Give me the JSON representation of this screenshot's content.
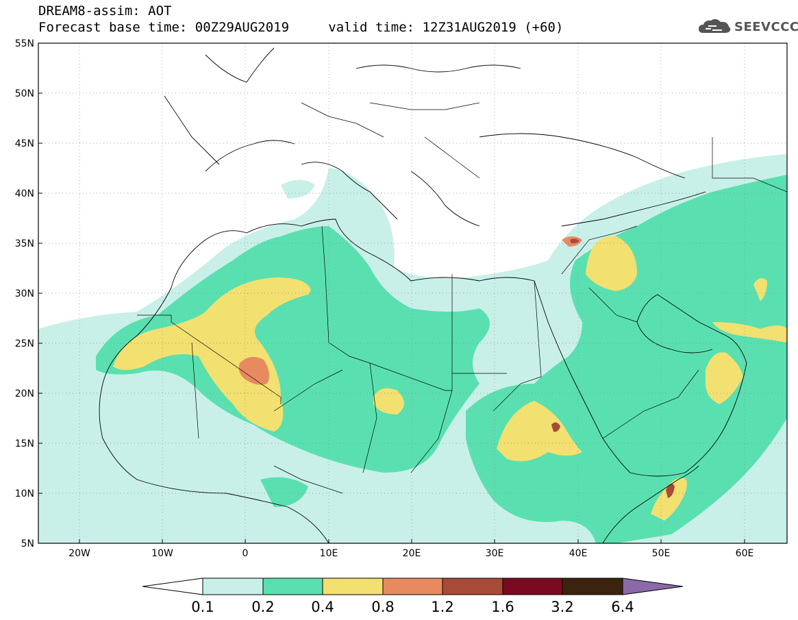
{
  "header": {
    "title": "DREAM8-assim: AOT",
    "base_time_label": "Forecast base time: 00Z29AUG2019",
    "valid_time_label": "valid time: 12Z31AUG2019 (+60)"
  },
  "logo": {
    "text": "SEEVCCC",
    "icon": "cloud-icon"
  },
  "map": {
    "lon_range": [
      -25,
      65
    ],
    "lat_range": [
      5,
      55
    ],
    "lat_ticks": [
      "55N",
      "50N",
      "45N",
      "40N",
      "35N",
      "30N",
      "25N",
      "20N",
      "15N",
      "10N",
      "5N"
    ],
    "lon_ticks": [
      "20W",
      "10W",
      "0",
      "10E",
      "20E",
      "30E",
      "40E",
      "50E",
      "60E"
    ]
  },
  "colorbar": {
    "labels": [
      "0.1",
      "0.2",
      "0.4",
      "0.8",
      "1.2",
      "1.6",
      "3.2",
      "6.4"
    ],
    "colors": [
      "#c8f0e8",
      "#5ae0b0",
      "#f2e070",
      "#e88a60",
      "#a84a38",
      "#7a0a20",
      "#3a2410",
      "#8a6aa8"
    ]
  }
}
